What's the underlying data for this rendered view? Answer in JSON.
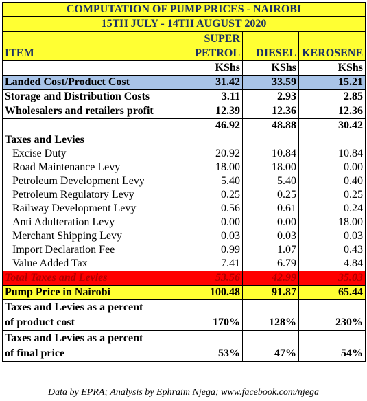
{
  "title_line1": "COMPUTATION OF PUMP PRICES - NAIROBI",
  "title_line2": "15TH JULY - 14TH AUGUST 2020",
  "header": {
    "item": "ITEM",
    "super_line1": "SUPER",
    "super_line2": "PETROL",
    "diesel": "DIESEL",
    "kerosene": "KEROSENE"
  },
  "units": {
    "super": "KShs",
    "diesel": "KShs",
    "kerosene": "KShs"
  },
  "rows": [
    {
      "label": "Landed Cost/Product Cost",
      "super": "31.42",
      "diesel": "33.59",
      "kerosene": "15.21"
    },
    {
      "label": "Storage and Distribution Costs",
      "super": "3.11",
      "diesel": "2.93",
      "kerosene": "2.85"
    },
    {
      "label": "Wholesalers and retailers profit",
      "super": "12.39",
      "diesel": "12.36",
      "kerosene": "12.36"
    },
    {
      "label": "",
      "super": "46.92",
      "diesel": "48.88",
      "kerosene": "30.42"
    }
  ],
  "taxes_heading": "Taxes and Levies",
  "taxes": [
    {
      "label": "Excise Duty",
      "super": "20.92",
      "diesel": "10.84",
      "kerosene": "10.84"
    },
    {
      "label": "Road Maintenance Levy",
      "super": "18.00",
      "diesel": "18.00",
      "kerosene": "0.00"
    },
    {
      "label": "Petroleum Development Levy",
      "super": "5.40",
      "diesel": "5.40",
      "kerosene": "0.40"
    },
    {
      "label": "Petroleum Regulatory Levy",
      "super": "0.25",
      "diesel": "0.25",
      "kerosene": "0.25"
    },
    {
      "label": "Railway Development Levy",
      "super": "0.56",
      "diesel": "0.61",
      "kerosene": "0.24"
    },
    {
      "label": "Anti Adulteration Levy",
      "super": "0.00",
      "diesel": "0.00",
      "kerosene": "18.00"
    },
    {
      "label": "Merchant Shipping Levy",
      "super": "0.03",
      "diesel": "0.03",
      "kerosene": "0.03"
    },
    {
      "label": "Import Declaration Fee",
      "super": "0.99",
      "diesel": "1.07",
      "kerosene": "0.43"
    },
    {
      "label": "Value Added Tax",
      "super": "7.41",
      "diesel": "6.79",
      "kerosene": "4.84"
    }
  ],
  "total_taxes": {
    "label": "Total Taxes and Levies",
    "super": "53.56",
    "diesel": "42.99",
    "kerosene": "35.03"
  },
  "pump_price": {
    "label": "Pump Price in Nairobi",
    "super": "100.48",
    "diesel": "91.87",
    "kerosene": "65.44"
  },
  "pct_product": {
    "label_line1": "Taxes and Levies as a percent",
    "label_line2": "of product cost",
    "super": "170%",
    "diesel": "128%",
    "kerosene": "230%"
  },
  "pct_final": {
    "label_line1": "Taxes and Levies as a percent",
    "label_line2": "of final price",
    "super": "53%",
    "diesel": "47%",
    "kerosene": "54%"
  },
  "caption": "Data by EPRA; Analysis by Ephraim Njega; www.facebook.com/njega"
}
